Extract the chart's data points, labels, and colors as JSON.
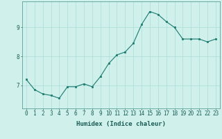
{
  "x": [
    0,
    1,
    2,
    3,
    4,
    5,
    6,
    7,
    8,
    9,
    10,
    11,
    12,
    13,
    14,
    15,
    16,
    17,
    18,
    19,
    20,
    21,
    22,
    23
  ],
  "y": [
    7.2,
    6.85,
    6.7,
    6.65,
    6.55,
    6.95,
    6.95,
    7.05,
    6.95,
    7.3,
    7.75,
    8.05,
    8.15,
    8.45,
    9.1,
    9.55,
    9.45,
    9.2,
    9.0,
    8.6,
    8.6,
    8.6,
    8.5,
    8.6
  ],
  "line_color": "#1a7a6e",
  "marker": "s",
  "markersize": 1.8,
  "linewidth": 0.8,
  "xlabel": "Humidex (Indice chaleur)",
  "ylim": [
    6.2,
    9.9
  ],
  "xlim": [
    -0.5,
    23.5
  ],
  "yticks": [
    7,
    8,
    9
  ],
  "xticks": [
    0,
    1,
    2,
    3,
    4,
    5,
    6,
    7,
    8,
    9,
    10,
    11,
    12,
    13,
    14,
    15,
    16,
    17,
    18,
    19,
    20,
    21,
    22,
    23
  ],
  "bg_color": "#cff0eb",
  "grid_color": "#aaddd6",
  "xlabel_fontsize": 6.5,
  "tick_fontsize": 5.5
}
